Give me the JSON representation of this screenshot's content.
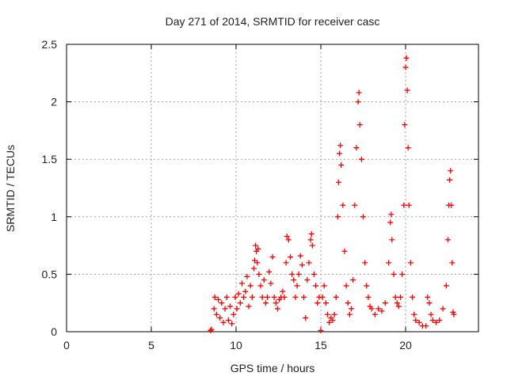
{
  "chart_data": {
    "type": "scatter",
    "title": "Day 271 of 2014, SRMTID for receiver casc",
    "xlabel": "GPS time / hours",
    "ylabel": "SRMTID / TECUs",
    "xlim": [
      0,
      24.3
    ],
    "ylim": [
      0,
      2.5
    ],
    "xticks": [
      0,
      5,
      10,
      15,
      20
    ],
    "xtick_labels": [
      "0",
      "5",
      "10",
      "15",
      "20"
    ],
    "yticks": [
      0,
      0.5,
      1,
      1.5,
      2,
      2.5
    ],
    "ytick_labels": [
      "0",
      "0.5",
      "1",
      "1.5",
      "2",
      "2.5"
    ],
    "grid": true,
    "marker": "+",
    "marker_color": "#ff0000",
    "series": [
      {
        "name": "SRMTID",
        "points": [
          [
            8.5,
            0.01
          ],
          [
            8.55,
            0.02
          ],
          [
            15.0,
            0.01
          ],
          [
            8.7,
            0.2
          ],
          [
            8.75,
            0.3
          ],
          [
            8.85,
            0.15
          ],
          [
            8.95,
            0.28
          ],
          [
            9.05,
            0.12
          ],
          [
            9.15,
            0.25
          ],
          [
            9.25,
            0.08
          ],
          [
            9.35,
            0.2
          ],
          [
            9.45,
            0.3
          ],
          [
            9.55,
            0.1
          ],
          [
            9.65,
            0.22
          ],
          [
            9.75,
            0.07
          ],
          [
            9.85,
            0.15
          ],
          [
            9.95,
            0.3
          ],
          [
            10.05,
            0.2
          ],
          [
            10.15,
            0.33
          ],
          [
            10.25,
            0.25
          ],
          [
            10.35,
            0.42
          ],
          [
            10.45,
            0.3
          ],
          [
            10.55,
            0.35
          ],
          [
            10.65,
            0.48
          ],
          [
            10.75,
            0.22
          ],
          [
            10.85,
            0.4
          ],
          [
            10.95,
            0.3
          ],
          [
            11.05,
            0.55
          ],
          [
            11.1,
            0.62
          ],
          [
            11.15,
            0.75
          ],
          [
            11.2,
            0.7
          ],
          [
            11.25,
            0.6
          ],
          [
            11.3,
            0.72
          ],
          [
            11.35,
            0.5
          ],
          [
            11.45,
            0.4
          ],
          [
            11.55,
            0.3
          ],
          [
            11.65,
            0.45
          ],
          [
            11.75,
            0.25
          ],
          [
            11.85,
            0.3
          ],
          [
            11.95,
            0.52
          ],
          [
            12.05,
            0.42
          ],
          [
            12.15,
            0.65
          ],
          [
            12.25,
            0.3
          ],
          [
            12.35,
            0.25
          ],
          [
            12.45,
            0.2
          ],
          [
            12.55,
            0.28
          ],
          [
            12.65,
            0.3
          ],
          [
            12.75,
            0.35
          ],
          [
            12.85,
            0.3
          ],
          [
            12.95,
            0.6
          ],
          [
            13.0,
            0.83
          ],
          [
            13.1,
            0.8
          ],
          [
            13.2,
            0.65
          ],
          [
            13.3,
            0.5
          ],
          [
            13.4,
            0.45
          ],
          [
            13.5,
            0.3
          ],
          [
            13.6,
            0.4
          ],
          [
            13.7,
            0.5
          ],
          [
            13.8,
            0.66
          ],
          [
            13.9,
            0.58
          ],
          [
            14.0,
            0.3
          ],
          [
            14.1,
            0.12
          ],
          [
            14.2,
            0.45
          ],
          [
            14.3,
            0.6
          ],
          [
            14.4,
            0.8
          ],
          [
            14.45,
            0.85
          ],
          [
            14.5,
            0.75
          ],
          [
            14.6,
            0.5
          ],
          [
            14.7,
            0.4
          ],
          [
            14.8,
            0.25
          ],
          [
            14.9,
            0.3
          ],
          [
            15.1,
            0.3
          ],
          [
            15.2,
            0.4
          ],
          [
            15.3,
            0.25
          ],
          [
            15.4,
            0.15
          ],
          [
            15.5,
            0.08
          ],
          [
            15.6,
            0.12
          ],
          [
            15.7,
            0.1
          ],
          [
            15.8,
            0.15
          ],
          [
            15.9,
            0.3
          ],
          [
            16.0,
            1.0
          ],
          [
            16.05,
            1.3
          ],
          [
            16.1,
            1.55
          ],
          [
            16.15,
            1.62
          ],
          [
            16.2,
            1.45
          ],
          [
            16.3,
            1.1
          ],
          [
            16.4,
            0.7
          ],
          [
            16.5,
            0.4
          ],
          [
            16.6,
            0.25
          ],
          [
            16.7,
            0.15
          ],
          [
            16.8,
            0.2
          ],
          [
            16.9,
            0.45
          ],
          [
            17.0,
            1.1
          ],
          [
            17.1,
            1.6
          ],
          [
            17.2,
            2.0
          ],
          [
            17.25,
            2.08
          ],
          [
            17.3,
            1.8
          ],
          [
            17.4,
            1.5
          ],
          [
            17.5,
            1.0
          ],
          [
            17.6,
            0.6
          ],
          [
            17.7,
            0.4
          ],
          [
            17.8,
            0.3
          ],
          [
            17.9,
            0.22
          ],
          [
            18.0,
            0.2
          ],
          [
            18.2,
            0.15
          ],
          [
            18.4,
            0.2
          ],
          [
            18.6,
            0.18
          ],
          [
            18.8,
            0.25
          ],
          [
            19.0,
            0.6
          ],
          [
            19.1,
            0.95
          ],
          [
            19.15,
            1.02
          ],
          [
            19.2,
            0.8
          ],
          [
            19.3,
            0.5
          ],
          [
            19.4,
            0.3
          ],
          [
            19.5,
            0.25
          ],
          [
            19.6,
            0.22
          ],
          [
            19.7,
            0.3
          ],
          [
            19.8,
            0.5
          ],
          [
            19.9,
            1.1
          ],
          [
            19.95,
            1.8
          ],
          [
            20.0,
            2.3
          ],
          [
            20.05,
            2.38
          ],
          [
            20.1,
            2.1
          ],
          [
            20.15,
            1.6
          ],
          [
            20.2,
            1.1
          ],
          [
            20.3,
            0.6
          ],
          [
            20.4,
            0.3
          ],
          [
            20.5,
            0.15
          ],
          [
            20.6,
            0.1
          ],
          [
            20.8,
            0.08
          ],
          [
            21.0,
            0.05
          ],
          [
            21.2,
            0.05
          ],
          [
            21.3,
            0.3
          ],
          [
            21.4,
            0.25
          ],
          [
            21.5,
            0.15
          ],
          [
            21.6,
            0.1
          ],
          [
            21.8,
            0.08
          ],
          [
            22.0,
            0.1
          ],
          [
            22.2,
            0.2
          ],
          [
            22.4,
            0.4
          ],
          [
            22.5,
            0.8
          ],
          [
            22.55,
            1.1
          ],
          [
            22.6,
            1.32
          ],
          [
            22.65,
            1.4
          ],
          [
            22.7,
            1.1
          ],
          [
            22.75,
            0.6
          ],
          [
            22.8,
            0.17
          ],
          [
            22.85,
            0.15
          ]
        ]
      }
    ]
  }
}
